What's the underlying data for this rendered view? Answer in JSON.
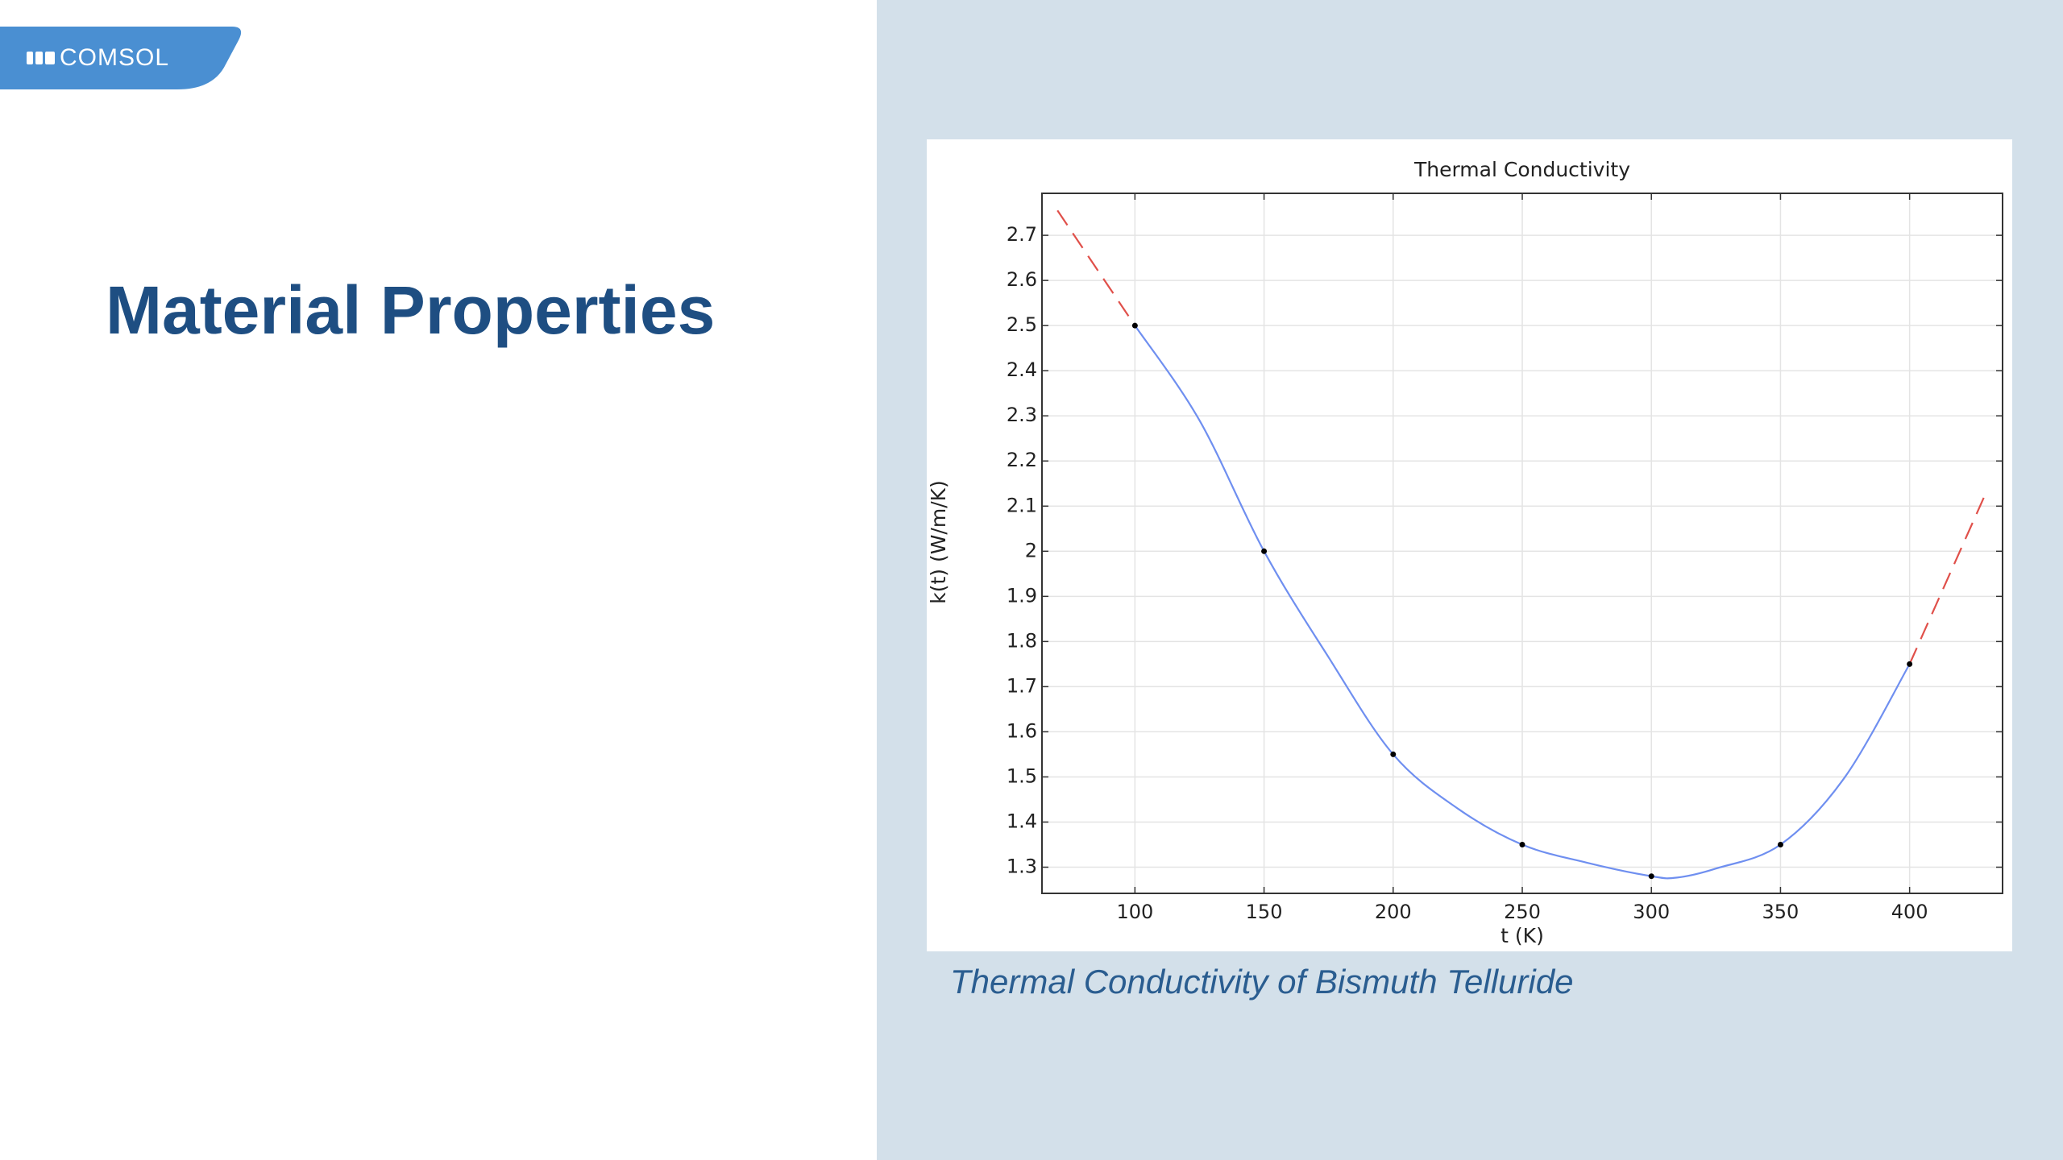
{
  "slide": {
    "logo": "COMSOL",
    "title": "Material Properties",
    "caption": "Thermal Conductivity of Bismuth Telluride"
  },
  "chart_data": {
    "type": "line",
    "title": "Thermal Conductivity",
    "x_label": "t (K)",
    "y_label": "k(t) (W/m/K)",
    "xlim": [
      64,
      436
    ],
    "ylim": [
      1.242,
      2.793
    ],
    "xticks": [
      100,
      150,
      200,
      250,
      300,
      350,
      400
    ],
    "yticks": [
      1.3,
      1.4,
      1.5,
      1.6,
      1.7,
      1.8,
      1.9,
      2,
      2.1,
      2.2,
      2.3,
      2.4,
      2.5,
      2.6,
      2.7
    ],
    "grid": true,
    "series": [
      {
        "color": "#6f8ff0",
        "style": "line",
        "x": [
          100,
          125,
          150,
          175,
          200,
          225,
          250,
          275,
          300,
          310,
          325,
          350,
          375,
          400
        ],
        "values": [
          2.5,
          2.29,
          2.0,
          1.765,
          1.55,
          1.43,
          1.35,
          1.31,
          1.28,
          1.277,
          1.297,
          1.35,
          1.5,
          1.75
        ]
      },
      {
        "color": "#e0504a",
        "style": "dashed",
        "x": [
          70,
          100
        ],
        "values": [
          2.755,
          2.5
        ]
      },
      {
        "color": "#e0504a",
        "style": "dashed",
        "x": [
          400,
          430
        ],
        "values": [
          1.75,
          2.135
        ]
      },
      {
        "color": "#000000",
        "style": "points",
        "x": [
          100,
          150,
          200,
          250,
          300,
          350,
          400
        ],
        "values": [
          2.5,
          2.0,
          1.55,
          1.35,
          1.28,
          1.35,
          1.75
        ]
      }
    ]
  }
}
